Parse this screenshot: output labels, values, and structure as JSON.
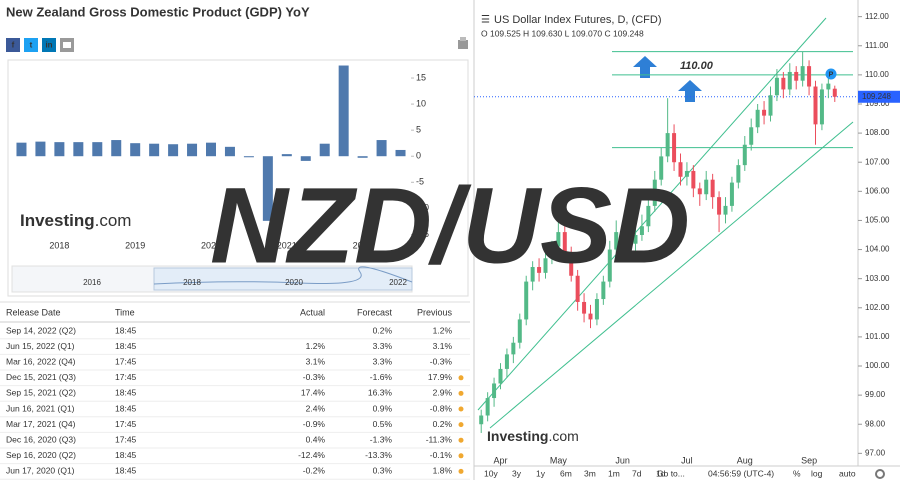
{
  "chart_data": [
    {
      "type": "bar",
      "title": "New Zealand Gross Domestic Product (GDP) YoY",
      "color": "#4f79ad",
      "categories": [
        null,
        null,
        "2018",
        null,
        null,
        null,
        "2019",
        null,
        null,
        null,
        "2020",
        null,
        null,
        null,
        "2021",
        null,
        null,
        null,
        "2022",
        null,
        null
      ],
      "values": [
        2.6,
        2.8,
        2.7,
        2.7,
        2.7,
        3.1,
        2.5,
        2.4,
        2.3,
        2.4,
        2.6,
        1.8,
        -0.2,
        -12.4,
        0.4,
        -0.9,
        2.4,
        17.4,
        -0.3,
        3.1,
        1.2
      ],
      "ylim": [
        -15.5,
        17.5
      ],
      "yticks": [
        15,
        10,
        5,
        0,
        -5,
        -10,
        -15
      ],
      "grid": false
    },
    {
      "type": "candlestick",
      "title": "US Dollar Index Futures, D, (CFD)",
      "legend_values": "O 109.525 H 109.630 L 109.070 C 109.248",
      "up_color": "#53b987",
      "down_color": "#eb4d5c",
      "grid": false,
      "categories": [
        null,
        null,
        null,
        "Apr",
        null,
        null,
        null,
        null,
        null,
        null,
        null,
        null,
        "May",
        null,
        null,
        null,
        null,
        null,
        null,
        null,
        null,
        null,
        "Jun",
        null,
        null,
        null,
        null,
        null,
        null,
        null,
        null,
        null,
        "Jul",
        null,
        null,
        null,
        null,
        null,
        null,
        null,
        null,
        "Aug",
        null,
        null,
        null,
        null,
        null,
        null,
        null,
        null,
        null,
        "Sep",
        null,
        null,
        null,
        null
      ],
      "open": [
        98.0,
        98.3,
        98.9,
        99.4,
        99.9,
        100.4,
        100.8,
        101.6,
        102.9,
        103.4,
        103.2,
        103.7,
        104.1,
        104.6,
        103.9,
        103.1,
        102.2,
        101.8,
        101.6,
        102.3,
        102.9,
        104.0,
        104.6,
        103.9,
        104.2,
        104.5,
        104.8,
        105.5,
        106.4,
        107.2,
        108.0,
        107.0,
        106.5,
        106.7,
        106.1,
        105.9,
        106.4,
        105.8,
        105.2,
        105.5,
        106.3,
        106.9,
        107.6,
        108.2,
        108.8,
        108.6,
        109.3,
        109.9,
        109.5,
        110.1,
        109.8,
        110.3,
        109.6,
        108.3,
        109.5,
        109.525
      ],
      "high": [
        98.5,
        99.1,
        99.6,
        100.1,
        100.6,
        101.0,
        101.8,
        103.1,
        103.6,
        103.7,
        103.9,
        104.3,
        105.0,
        104.8,
        104.1,
        103.3,
        102.5,
        102.1,
        102.5,
        103.1,
        104.3,
        105.0,
        104.8,
        104.5,
        104.8,
        105.2,
        105.8,
        106.7,
        107.5,
        109.2,
        108.3,
        107.3,
        107.0,
        106.9,
        106.3,
        106.7,
        106.6,
        106.0,
        105.8,
        106.5,
        107.1,
        107.9,
        108.5,
        109.0,
        109.1,
        109.6,
        110.2,
        110.1,
        110.4,
        110.3,
        110.8,
        110.5,
        109.8,
        109.7,
        109.9,
        109.63
      ],
      "low": [
        97.7,
        98.1,
        98.6,
        99.2,
        99.6,
        100.1,
        100.6,
        101.4,
        102.6,
        102.9,
        103.0,
        103.5,
        103.9,
        103.7,
        102.9,
        101.9,
        101.5,
        101.3,
        101.4,
        102.1,
        102.7,
        103.8,
        103.6,
        103.7,
        103.9,
        104.3,
        104.6,
        105.3,
        106.2,
        107.0,
        106.7,
        106.2,
        106.2,
        105.8,
        105.5,
        105.7,
        105.4,
        104.6,
        104.9,
        105.3,
        106.1,
        106.7,
        107.4,
        108.0,
        108.3,
        108.4,
        109.1,
        109.2,
        109.3,
        109.5,
        109.6,
        109.3,
        107.6,
        108.1,
        109.2,
        109.07
      ],
      "close": [
        98.3,
        98.9,
        99.4,
        99.9,
        100.4,
        100.8,
        101.6,
        102.9,
        103.4,
        103.2,
        103.7,
        104.1,
        104.6,
        103.9,
        103.1,
        102.2,
        101.8,
        101.6,
        102.3,
        102.9,
        104.0,
        104.6,
        103.9,
        104.2,
        104.5,
        104.8,
        105.5,
        106.4,
        107.2,
        108.0,
        107.0,
        106.5,
        106.7,
        106.1,
        105.9,
        106.4,
        105.8,
        105.2,
        105.5,
        106.3,
        106.9,
        107.6,
        108.2,
        108.8,
        108.6,
        109.3,
        109.9,
        109.5,
        110.1,
        109.8,
        110.3,
        109.6,
        108.3,
        109.5,
        109.7,
        109.248
      ],
      "ylim": [
        96.6,
        112.4
      ],
      "yticks": [
        {
          "value": 112,
          "label": "112.00"
        },
        {
          "value": 111,
          "label": "111.00"
        },
        {
          "value": 110,
          "label": "110.00"
        },
        {
          "value": 109,
          "label": "109.00"
        },
        {
          "value": 108,
          "label": "108.00"
        },
        {
          "value": 107,
          "label": "107.00"
        },
        {
          "value": 106,
          "label": "106.00"
        },
        {
          "value": 105,
          "label": "105.00"
        },
        {
          "value": 104,
          "label": "104.00"
        },
        {
          "value": 103,
          "label": "103.00"
        },
        {
          "value": 102,
          "label": "102.00"
        },
        {
          "value": 101,
          "label": "101.00"
        },
        {
          "value": 100,
          "label": "100.00"
        },
        {
          "value": 99,
          "label": "99.00"
        },
        {
          "value": 98,
          "label": "98.00"
        },
        {
          "value": 97,
          "label": "97.00"
        }
      ],
      "levels": [
        110.8,
        110.0,
        107.5
      ],
      "annotation": "110.00",
      "badge": "P"
    }
  ],
  "overlay_title": "NZD/USD",
  "logo": {
    "brand": "Investing",
    "suffix": ".com"
  },
  "share_icons": [
    "f",
    "t",
    "in"
  ],
  "navigator_labels": [
    "2016",
    "2018",
    "2020",
    "2022"
  ],
  "toolbar": {
    "ranges": [
      "10y",
      "3y",
      "1y",
      "6m",
      "3m",
      "1m",
      "7d",
      "1d"
    ],
    "goto": "Go to...",
    "clock": "04:56:59 (UTC-4)",
    "options": [
      "%",
      "log",
      "auto"
    ]
  },
  "table": {
    "headers": [
      "Release Date",
      "Time",
      "Actual",
      "Forecast",
      "Previous"
    ],
    "rows": [
      {
        "date": "Sep 14, 2022 (Q2)",
        "time": "18:45",
        "forecast": "0.2%",
        "previous": "1.2%",
        "previous_color": "#333333"
      },
      {
        "date": "Jun 15, 2022 (Q1)",
        "time": "18:45",
        "actual": "1.2%",
        "actual_color": "#e02020",
        "forecast": "3.3%",
        "previous": "3.1%",
        "previous_color": "#333333"
      },
      {
        "date": "Mar 16, 2022 (Q4)",
        "time": "17:45",
        "actual": "3.1%",
        "actual_color": "#e02020",
        "forecast": "3.3%",
        "previous": "-0.3%",
        "previous_color": "#333333"
      },
      {
        "date": "Dec 15, 2021 (Q3)",
        "time": "17:45",
        "actual": "-0.3%",
        "actual_color": "#2e9e2e",
        "forecast": "-1.6%",
        "previous": "17.9%",
        "previous_color": "#2e9e2e",
        "dot_color": "#f0a830"
      },
      {
        "date": "Sep 15, 2021 (Q2)",
        "time": "18:45",
        "actual": "17.4%",
        "actual_color": "#2e9e2e",
        "forecast": "16.3%",
        "previous": "2.9%",
        "previous_color": "#2e9e2e",
        "dot_color": "#f0a830"
      },
      {
        "date": "Jun 16, 2021 (Q1)",
        "time": "18:45",
        "actual": "2.4%",
        "actual_color": "#2e9e2e",
        "forecast": "0.9%",
        "previous": "-0.8%",
        "previous_color": "#2e9e2e",
        "dot_color": "#f0a830"
      },
      {
        "date": "Mar 17, 2021 (Q4)",
        "time": "17:45",
        "actual": "-0.9%",
        "actual_color": "#e02020",
        "forecast": "0.5%",
        "previous": "0.2%",
        "previous_color": "#e02020",
        "dot_color": "#f0a830"
      },
      {
        "date": "Dec 16, 2020 (Q3)",
        "time": "17:45",
        "actual": "0.4%",
        "actual_color": "#2e9e2e",
        "forecast": "-1.3%",
        "previous": "-11.3%",
        "previous_color": "#2e9e2e",
        "dot_color": "#f0a830"
      },
      {
        "date": "Sep 16, 2020 (Q2)",
        "time": "18:45",
        "actual": "-12.4%",
        "actual_color": "#e02020",
        "forecast": "-13.3%",
        "previous": "-0.1%",
        "previous_color": "#2e9e2e",
        "dot_color": "#f0a830"
      },
      {
        "date": "Jun 17, 2020 (Q1)",
        "time": "18:45",
        "actual": "-0.2%",
        "actual_color": "#e02020",
        "forecast": "0.3%",
        "previous": "1.8%",
        "previous_color": "#333333",
        "dot_color": "#f0a830"
      }
    ]
  }
}
